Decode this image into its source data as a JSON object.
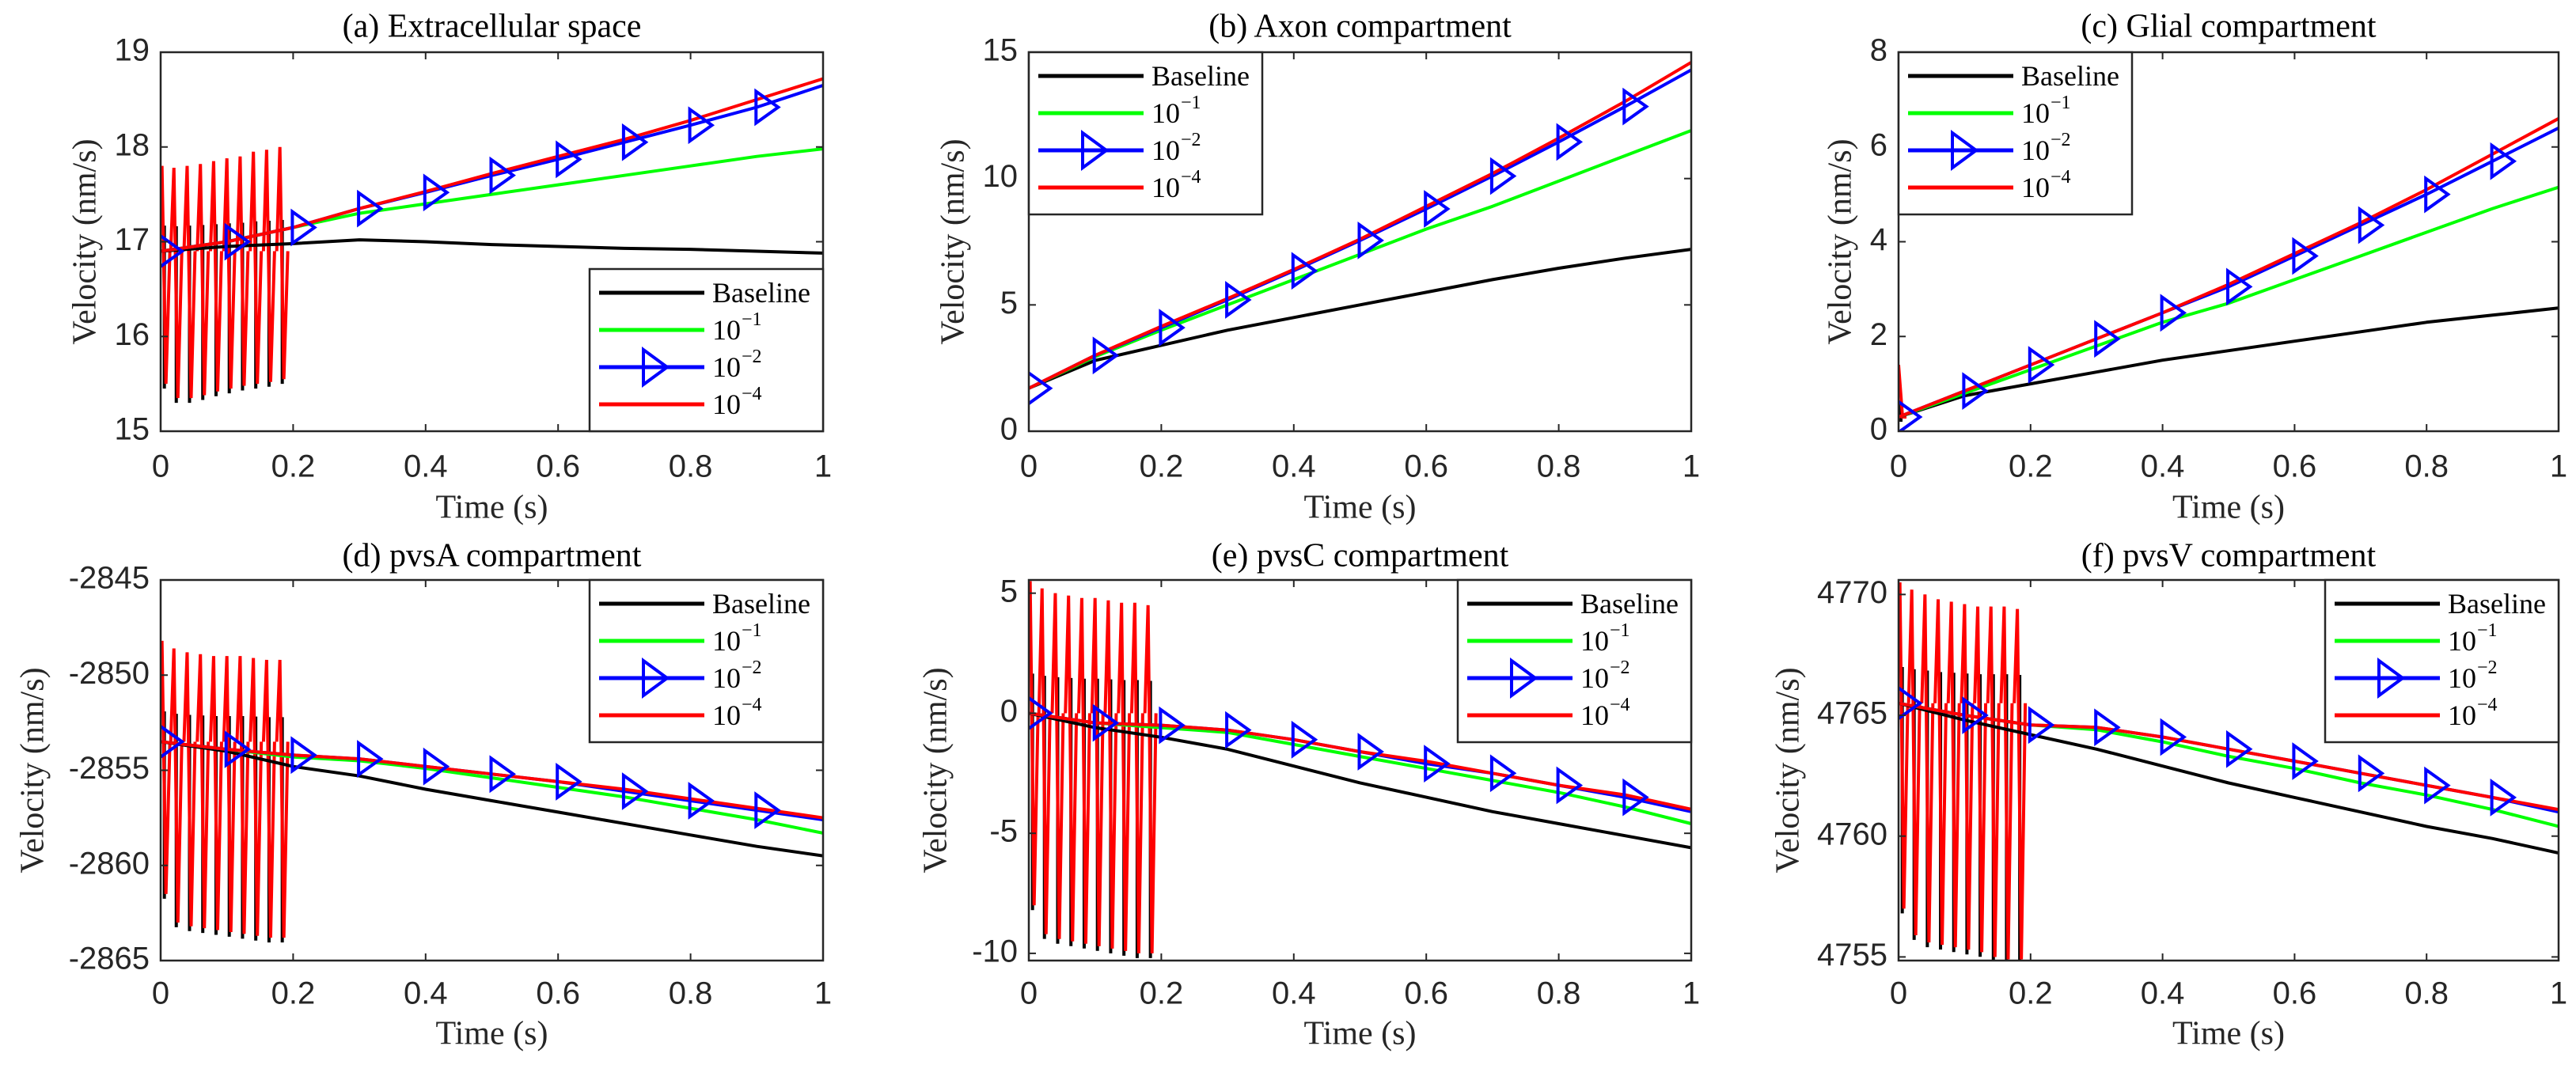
{
  "colors": {
    "Baseline": "#000000",
    "g1": "#00ff00",
    "g2": "#0000ff",
    "g4": "#ff0000"
  },
  "chart_data": [
    {
      "type": "line",
      "title": "(a) Extracellular space",
      "xlabel": "Time (s)",
      "ylabel": "Velocity (nm/s)",
      "xlim": [
        0,
        1
      ],
      "ylim": [
        15,
        19
      ],
      "xticks": [
        "0",
        "0.2",
        "0.4",
        "0.6",
        "0.8",
        "1"
      ],
      "yticks": [
        "15",
        "16",
        "17",
        "18",
        "19"
      ],
      "legend_position": "bottom-right",
      "x": [
        0,
        0.1,
        0.2,
        0.3,
        0.4,
        0.5,
        0.6,
        0.7,
        0.8,
        0.9,
        1
      ],
      "series": [
        {
          "key": "Baseline",
          "label": "Baseline",
          "exp": "",
          "values": [
            16.9,
            16.95,
            16.98,
            17.02,
            17.0,
            16.97,
            16.95,
            16.93,
            16.92,
            16.9,
            16.88
          ]
        },
        {
          "key": "g1",
          "label": "10",
          "exp": "−1",
          "values": [
            16.9,
            17.0,
            17.15,
            17.3,
            17.4,
            17.5,
            17.6,
            17.7,
            17.8,
            17.9,
            17.98
          ]
        },
        {
          "key": "g2",
          "label": "10",
          "exp": "−2",
          "marker": "triangle-right",
          "values": [
            16.9,
            17.0,
            17.15,
            17.35,
            17.52,
            17.7,
            17.87,
            18.05,
            18.23,
            18.42,
            18.65
          ]
        },
        {
          "key": "g4",
          "label": "10",
          "exp": "−4",
          "values": [
            16.9,
            17.0,
            17.15,
            17.35,
            17.53,
            17.72,
            17.9,
            18.08,
            18.28,
            18.5,
            18.72
          ]
        }
      ],
      "oscillation": {
        "t": [
          0.002,
          0.02,
          0.04,
          0.06,
          0.08,
          0.1,
          0.12,
          0.14,
          0.16,
          0.18
        ],
        "max": [
          17.8,
          17.78,
          17.8,
          17.82,
          17.85,
          17.88,
          17.9,
          17.95,
          17.97,
          18.0
        ],
        "min": [
          15.5,
          15.35,
          15.35,
          15.38,
          15.42,
          15.45,
          15.48,
          15.5,
          15.52,
          15.55
        ]
      }
    },
    {
      "type": "line",
      "title": "(b) Axon compartment",
      "xlabel": "Time (s)",
      "ylabel": "Velocity (nm/s)",
      "xlim": [
        0,
        1
      ],
      "ylim": [
        0,
        15
      ],
      "xticks": [
        "0",
        "0.2",
        "0.4",
        "0.6",
        "0.8",
        "1"
      ],
      "yticks": [
        "0",
        "5",
        "10",
        "15"
      ],
      "legend_position": "top-left",
      "x": [
        0,
        0.1,
        0.2,
        0.3,
        0.4,
        0.5,
        0.6,
        0.7,
        0.8,
        0.9,
        1
      ],
      "series": [
        {
          "key": "Baseline",
          "label": "Baseline",
          "exp": "",
          "values": [
            1.7,
            2.8,
            3.4,
            4.0,
            4.5,
            5.0,
            5.5,
            6.0,
            6.45,
            6.85,
            7.2
          ]
        },
        {
          "key": "g1",
          "label": "10",
          "exp": "−1",
          "values": [
            1.7,
            2.95,
            4.0,
            5.0,
            6.0,
            7.0,
            8.0,
            8.9,
            9.9,
            10.9,
            11.9
          ]
        },
        {
          "key": "g2",
          "label": "10",
          "exp": "−2",
          "marker": "triangle-right",
          "values": [
            1.7,
            3.0,
            4.1,
            5.2,
            6.35,
            7.55,
            8.8,
            10.1,
            11.45,
            12.85,
            14.3
          ]
        },
        {
          "key": "g4",
          "label": "10",
          "exp": "−4",
          "values": [
            1.7,
            3.0,
            4.15,
            5.25,
            6.4,
            7.6,
            8.9,
            10.2,
            11.6,
            13.05,
            14.6
          ]
        }
      ]
    },
    {
      "type": "line",
      "title": "(c) Glial compartment",
      "xlabel": "Time (s)",
      "ylabel": "Velocity (nm/s)",
      "xlim": [
        0,
        1
      ],
      "ylim": [
        0,
        8
      ],
      "xticks": [
        "0",
        "0.2",
        "0.4",
        "0.6",
        "0.8",
        "1"
      ],
      "yticks": [
        "0",
        "2",
        "4",
        "6",
        "8"
      ],
      "legend_position": "top-left",
      "x": [
        0,
        0.1,
        0.2,
        0.3,
        0.4,
        0.5,
        0.6,
        0.7,
        0.8,
        0.9,
        1
      ],
      "series": [
        {
          "key": "Baseline",
          "label": "Baseline",
          "exp": "",
          "values": [
            0.3,
            0.75,
            1.0,
            1.25,
            1.5,
            1.7,
            1.9,
            2.1,
            2.3,
            2.45,
            2.6
          ]
        },
        {
          "key": "g1",
          "label": "10",
          "exp": "−1",
          "values": [
            0.3,
            0.8,
            1.3,
            1.8,
            2.3,
            2.7,
            3.2,
            3.7,
            4.2,
            4.7,
            5.15
          ]
        },
        {
          "key": "g2",
          "label": "10",
          "exp": "−2",
          "marker": "triangle-right",
          "values": [
            0.3,
            0.85,
            1.4,
            1.95,
            2.5,
            3.05,
            3.7,
            4.35,
            5.0,
            5.7,
            6.4
          ]
        },
        {
          "key": "g4",
          "label": "10",
          "exp": "−4",
          "values": [
            0.3,
            0.85,
            1.4,
            1.95,
            2.5,
            3.1,
            3.75,
            4.4,
            5.1,
            5.85,
            6.6
          ]
        }
      ],
      "oscillation": {
        "t": [
          0.0
        ],
        "max": [
          1.4
        ],
        "min": [
          0.3
        ]
      }
    },
    {
      "type": "line",
      "title": "(d) pvsA compartment",
      "xlabel": "Time (s)",
      "ylabel": "Velocity (nm/s)",
      "xlim": [
        0,
        1
      ],
      "ylim": [
        -2865,
        -2845
      ],
      "xticks": [
        "0",
        "0.2",
        "0.4",
        "0.6",
        "0.8",
        "1"
      ],
      "yticks": [
        "-2865",
        "-2860",
        "-2855",
        "-2850",
        "-2845"
      ],
      "legend_position": "top-right",
      "x": [
        0,
        0.1,
        0.2,
        0.3,
        0.4,
        0.5,
        0.6,
        0.7,
        0.8,
        0.9,
        1
      ],
      "series": [
        {
          "key": "Baseline",
          "label": "Baseline",
          "exp": "",
          "values": [
            -2853.5,
            -2854.0,
            -2854.8,
            -2855.3,
            -2856.0,
            -2856.6,
            -2857.2,
            -2857.8,
            -2858.4,
            -2859.0,
            -2859.5
          ]
        },
        {
          "key": "g1",
          "label": "10",
          "exp": "−1",
          "values": [
            -2853.5,
            -2853.9,
            -2854.3,
            -2854.5,
            -2854.9,
            -2855.4,
            -2855.9,
            -2856.4,
            -2857.0,
            -2857.6,
            -2858.3
          ]
        },
        {
          "key": "g2",
          "label": "10",
          "exp": "−2",
          "marker": "triangle-right",
          "values": [
            -2853.5,
            -2853.9,
            -2854.2,
            -2854.4,
            -2854.8,
            -2855.2,
            -2855.6,
            -2856.1,
            -2856.6,
            -2857.1,
            -2857.6
          ]
        },
        {
          "key": "g4",
          "label": "10",
          "exp": "−4",
          "values": [
            -2853.5,
            -2853.9,
            -2854.2,
            -2854.4,
            -2854.8,
            -2855.2,
            -2855.6,
            -2856.0,
            -2856.5,
            -2857.0,
            -2857.5
          ]
        }
      ],
      "oscillation": {
        "t": [
          0.002,
          0.02,
          0.04,
          0.06,
          0.08,
          0.1,
          0.12,
          0.14,
          0.16,
          0.18
        ],
        "max": [
          -2848.2,
          -2848.6,
          -2848.8,
          -2848.9,
          -2849.0,
          -2849.0,
          -2849.0,
          -2849.1,
          -2849.2,
          -2849.2
        ],
        "min": [
          -2861.5,
          -2863.0,
          -2863.2,
          -2863.3,
          -2863.4,
          -2863.5,
          -2863.6,
          -2863.7,
          -2863.8,
          -2863.8
        ]
      }
    },
    {
      "type": "line",
      "title": "(e) pvsC compartment",
      "xlabel": "Time (s)",
      "ylabel": "Velocity (nm/s)",
      "xlim": [
        0,
        1
      ],
      "ylim": [
        -10.3,
        5.55
      ],
      "xticks": [
        "0",
        "0.2",
        "0.4",
        "0.6",
        "0.8",
        "1"
      ],
      "yticks": [
        "-10",
        "-5",
        "0",
        "5"
      ],
      "legend_position": "top-right",
      "x": [
        0,
        0.1,
        0.2,
        0.3,
        0.4,
        0.5,
        0.6,
        0.7,
        0.8,
        0.9,
        1
      ],
      "series": [
        {
          "key": "Baseline",
          "label": "Baseline",
          "exp": "",
          "values": [
            0,
            -0.6,
            -1.0,
            -1.5,
            -2.2,
            -2.9,
            -3.5,
            -4.1,
            -4.6,
            -5.1,
            -5.6
          ]
        },
        {
          "key": "g1",
          "label": "10",
          "exp": "−1",
          "values": [
            0,
            -0.4,
            -0.6,
            -0.8,
            -1.3,
            -1.8,
            -2.3,
            -2.8,
            -3.3,
            -3.9,
            -4.6
          ]
        },
        {
          "key": "g2",
          "label": "10",
          "exp": "−2",
          "marker": "triangle-right",
          "values": [
            0,
            -0.4,
            -0.5,
            -0.7,
            -1.1,
            -1.6,
            -2.1,
            -2.5,
            -3.0,
            -3.5,
            -4.1
          ]
        },
        {
          "key": "g4",
          "label": "10",
          "exp": "−4",
          "values": [
            0,
            -0.4,
            -0.5,
            -0.7,
            -1.1,
            -1.6,
            -2.0,
            -2.5,
            -3.0,
            -3.4,
            -4.0
          ]
        }
      ],
      "oscillation": {
        "t": [
          0.002,
          0.02,
          0.04,
          0.06,
          0.08,
          0.1,
          0.12,
          0.14,
          0.16,
          0.18
        ],
        "max": [
          5.5,
          5.2,
          5.0,
          4.9,
          4.8,
          4.8,
          4.7,
          4.6,
          4.6,
          4.5
        ],
        "min": [
          -8.0,
          -9.2,
          -9.4,
          -9.5,
          -9.6,
          -9.7,
          -9.8,
          -9.9,
          -10.0,
          -10.0
        ]
      }
    },
    {
      "type": "line",
      "title": "(f) pvsV compartment",
      "xlabel": "Time (s)",
      "ylabel": "Velocity (nm/s)",
      "xlim": [
        0,
        1
      ],
      "ylim": [
        4754.85,
        4770.6
      ],
      "xticks": [
        "0",
        "0.2",
        "0.4",
        "0.6",
        "0.8",
        "1"
      ],
      "yticks": [
        "4755",
        "4760",
        "4765",
        "4770"
      ],
      "legend_position": "top-right",
      "x": [
        0,
        0.1,
        0.2,
        0.3,
        0.4,
        0.5,
        0.6,
        0.7,
        0.8,
        0.9,
        1
      ],
      "series": [
        {
          "key": "Baseline",
          "label": "Baseline",
          "exp": "",
          "values": [
            4765.5,
            4764.8,
            4764.2,
            4763.6,
            4762.9,
            4762.2,
            4761.6,
            4761.0,
            4760.4,
            4759.9,
            4759.3
          ]
        },
        {
          "key": "g1",
          "label": "10",
          "exp": "−1",
          "values": [
            4765.5,
            4765.0,
            4764.6,
            4764.4,
            4763.9,
            4763.3,
            4762.8,
            4762.2,
            4761.7,
            4761.1,
            4760.4
          ]
        },
        {
          "key": "g2",
          "label": "10",
          "exp": "−2",
          "marker": "triangle-right",
          "values": [
            4765.5,
            4765.0,
            4764.6,
            4764.5,
            4764.1,
            4763.6,
            4763.1,
            4762.6,
            4762.1,
            4761.6,
            4761.0
          ]
        },
        {
          "key": "g4",
          "label": "10",
          "exp": "−4",
          "values": [
            4765.5,
            4765.0,
            4764.6,
            4764.5,
            4764.1,
            4763.6,
            4763.1,
            4762.6,
            4762.1,
            4761.6,
            4761.1
          ]
        }
      ],
      "oscillation": {
        "t": [
          0.002,
          0.02,
          0.04,
          0.06,
          0.08,
          0.1,
          0.12,
          0.14,
          0.16,
          0.18
        ],
        "max": [
          4770.5,
          4770.2,
          4770.0,
          4769.8,
          4769.7,
          4769.6,
          4769.5,
          4769.5,
          4769.5,
          4769.4
        ],
        "min": [
          4757.0,
          4755.9,
          4755.6,
          4755.5,
          4755.4,
          4755.3,
          4755.2,
          4755.0,
          4754.9,
          4754.9
        ]
      }
    }
  ]
}
